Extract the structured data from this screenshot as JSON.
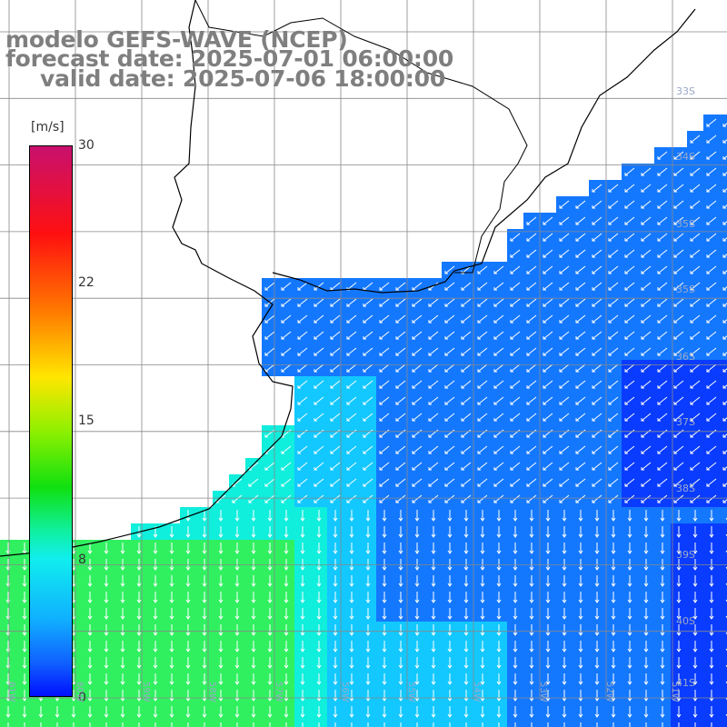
{
  "title": {
    "line1": "modelo GEFS-WAVE (NCEP)",
    "line2": "forecast date: 2025-07-01 06:00:00",
    "line3": "valid date: 2025-07-06 18:00:00"
  },
  "colorbar": {
    "unit": "[m/s]",
    "ticks": [
      "30",
      "22",
      "15",
      "8",
      "0"
    ],
    "min": 0,
    "max": 30,
    "colors": [
      "#0010ff",
      "#1060ff",
      "#10b0ff",
      "#10eeee",
      "#10e010",
      "#8cf000",
      "#ffe600",
      "#ff7a00",
      "#ff1010",
      "#c8106e"
    ]
  },
  "lat_labels": [
    "33S",
    "34S",
    "35S",
    "36S",
    "37S",
    "38S",
    "39S",
    "40S",
    "41S"
  ],
  "lon_labels": [
    "61W",
    "60W",
    "59W",
    "58W",
    "57W",
    "56W",
    "55W",
    "54W",
    "53W",
    "52W",
    "51W"
  ],
  "colors": {
    "land": "#ffffff",
    "coastline": "#000000",
    "grid": "#888888",
    "arrows": "#ffffff",
    "ocean_dark": "#0a3cff",
    "ocean_mid": "#1478ff",
    "ocean_light": "#12c8ff",
    "ocean_cyan": "#10eedc",
    "ocean_green": "#30f060"
  }
}
